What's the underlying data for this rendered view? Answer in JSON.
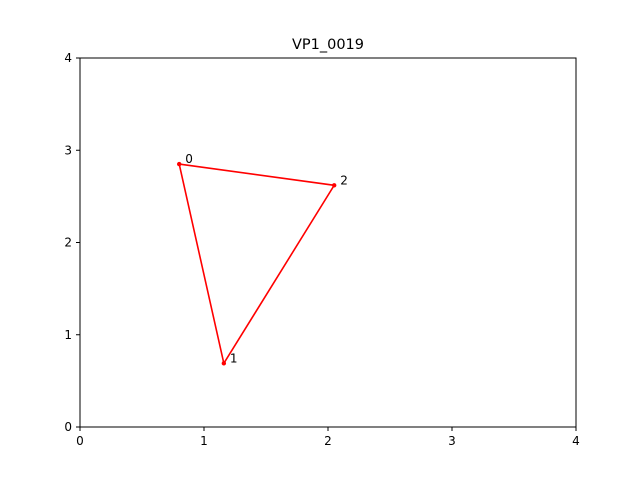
{
  "chart_data": {
    "type": "line",
    "title": "VP1_0019",
    "xlabel": "",
    "ylabel": "",
    "xlim": [
      0,
      4
    ],
    "ylim": [
      0,
      4
    ],
    "x_ticks": [
      "0",
      "1",
      "2",
      "3",
      "4"
    ],
    "y_ticks": [
      "0",
      "1",
      "2",
      "3",
      "4"
    ],
    "grid": false,
    "legend": "none",
    "series": [
      {
        "color": "#ff0000",
        "closed": true,
        "points": [
          {
            "label": "0",
            "x": 0.8,
            "y": 2.85
          },
          {
            "label": "1",
            "x": 1.16,
            "y": 0.69
          },
          {
            "label": "2",
            "x": 2.05,
            "y": 2.62
          }
        ]
      }
    ]
  }
}
